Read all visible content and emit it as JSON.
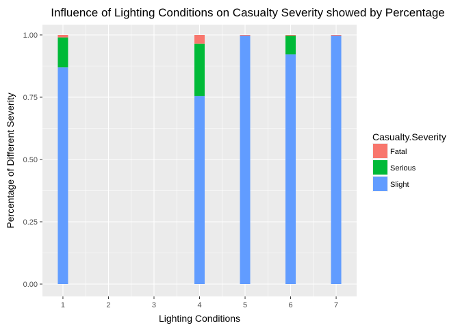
{
  "chart_data": {
    "type": "bar",
    "stacked": true,
    "title": "Influence of Lighting Conditions on Casualty Severity showed by Percentage",
    "xlabel": "Lighting Conditions",
    "ylabel": "Percentage of Different Severity",
    "categories": [
      "1",
      "2",
      "3",
      "4",
      "5",
      "6",
      "7"
    ],
    "x_ticks": [
      "1",
      "2",
      "3",
      "4",
      "5",
      "6",
      "7"
    ],
    "y_ticks": [
      "0.00",
      "0.25",
      "0.50",
      "0.75",
      "1.00"
    ],
    "ylim": [
      0,
      1
    ],
    "grid": true,
    "legend": {
      "title": "Casualty.Severity",
      "position": "right",
      "entries": [
        "Fatal",
        "Serious",
        "Slight"
      ]
    },
    "series": [
      {
        "name": "Fatal",
        "color": "#F8766D",
        "values": [
          0.01,
          null,
          null,
          0.035,
          0.003,
          0.003,
          0.003
        ]
      },
      {
        "name": "Serious",
        "color": "#00BA38",
        "values": [
          0.12,
          null,
          null,
          0.21,
          0.0,
          0.075,
          0.0
        ]
      },
      {
        "name": "Slight",
        "color": "#619CFF",
        "values": [
          0.87,
          null,
          null,
          0.755,
          0.997,
          0.922,
          0.997
        ]
      }
    ],
    "panel_background": "#EBEBEB",
    "grid_color": "#FFFFFF"
  }
}
